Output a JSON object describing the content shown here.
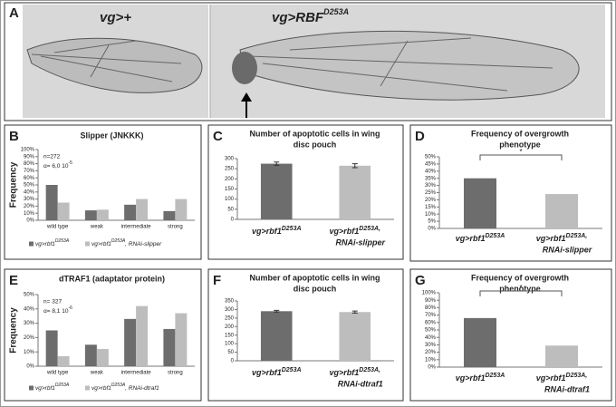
{
  "panel_a": {
    "letter": "A",
    "left_label": "vg>+",
    "right_label": "vg>RBF",
    "right_label_sup": "D253A"
  },
  "chart_data": [
    {
      "type": "bar",
      "panel": "B",
      "title": [
        "Slipper (JNKKK)"
      ],
      "ylabel": "Frequency",
      "annotations": [
        "n=272",
        "α= 6,0 10",
        "-5"
      ],
      "categories": [
        "wild type",
        "weak",
        "intermediate",
        "strong"
      ],
      "series": [
        {
          "name": "vg>rbf1",
          "sup": "D253A",
          "color": "#6d6d6d",
          "values": [
            50,
            14,
            22,
            13
          ]
        },
        {
          "name": "vg>rbf1",
          "sup": "D253A",
          "suffix": ", RNAi-slipper",
          "color": "#bdbdbd",
          "values": [
            25,
            15,
            30,
            30
          ]
        }
      ],
      "ylim": [
        0,
        100
      ],
      "yticks": [
        {
          "value": 0,
          "label": "0%"
        },
        {
          "value": 10,
          "label": "10%"
        },
        {
          "value": 20,
          "label": "20%"
        },
        {
          "value": 30,
          "label": "30%"
        },
        {
          "value": 40,
          "label": "40%"
        },
        {
          "value": 50,
          "label": "50%"
        },
        {
          "value": 60,
          "label": "60%"
        },
        {
          "value": 70,
          "label": "70%"
        },
        {
          "value": 80,
          "label": "80%"
        },
        {
          "value": 90,
          "label": "90%"
        },
        {
          "value": 100,
          "label": "100%"
        }
      ]
    },
    {
      "type": "bar",
      "panel": "C",
      "title": [
        "Number of apoptotic cells in wing",
        "disc pouch"
      ],
      "categories": [
        "vg>rbf1",
        "vg>rbf1"
      ],
      "category_sup": [
        "D253A",
        "D253A,"
      ],
      "category_line2": [
        null,
        "RNAi-slipper"
      ],
      "values": [
        275,
        265
      ],
      "errors": [
        8,
        10
      ],
      "colors": [
        "#6d6d6d",
        "#bdbdbd"
      ],
      "ylim": [
        0,
        300
      ],
      "yticks": [
        0,
        50,
        100,
        150,
        200,
        250,
        300
      ]
    },
    {
      "type": "bar",
      "panel": "D",
      "title": [
        "Frequency of overgrowth",
        "phenotype"
      ],
      "significance": "*",
      "categories": [
        "vg>rbf1",
        "vg>rbf1"
      ],
      "category_sup": [
        "D253A",
        "D253A,"
      ],
      "category_line2": [
        null,
        "RNAi-slipper"
      ],
      "values": [
        35,
        24
      ],
      "colors": [
        "#6d6d6d",
        "#bdbdbd"
      ],
      "ylim": [
        0,
        50
      ],
      "yticks": [
        {
          "value": 0,
          "label": "0%"
        },
        {
          "value": 5,
          "label": "5%"
        },
        {
          "value": 10,
          "label": "10%"
        },
        {
          "value": 15,
          "label": "15%"
        },
        {
          "value": 20,
          "label": "20%"
        },
        {
          "value": 25,
          "label": "25%"
        },
        {
          "value": 30,
          "label": "30%"
        },
        {
          "value": 35,
          "label": "35%"
        },
        {
          "value": 40,
          "label": "40%"
        },
        {
          "value": 45,
          "label": "45%"
        },
        {
          "value": 50,
          "label": "50%"
        }
      ]
    },
    {
      "type": "bar",
      "panel": "E",
      "title": [
        "dTRAF1 (adaptator protein)"
      ],
      "ylabel": "Frequency",
      "annotations": [
        "n= 327",
        "α= 8,1 10",
        "-6"
      ],
      "categories": [
        "wild type",
        "weak",
        "intermediate",
        "strong"
      ],
      "series": [
        {
          "name": "vg>rbf1",
          "sup": "D253A",
          "color": "#6d6d6d",
          "values": [
            25,
            15,
            33,
            26
          ]
        },
        {
          "name": "vg>rbf1",
          "sup": "D253A",
          "suffix": ", RNAi-dtraf1",
          "color": "#bdbdbd",
          "values": [
            7,
            12,
            42,
            37
          ]
        }
      ],
      "ylim": [
        0,
        50
      ],
      "yticks": [
        {
          "value": 0,
          "label": "0%"
        },
        {
          "value": 10,
          "label": "10%"
        },
        {
          "value": 20,
          "label": "20%"
        },
        {
          "value": 30,
          "label": "30%"
        },
        {
          "value": 40,
          "label": "40%"
        },
        {
          "value": 50,
          "label": "50%"
        }
      ]
    },
    {
      "type": "bar",
      "panel": "F",
      "title": [
        "Number of apoptotic cells in wing",
        "disc pouch"
      ],
      "categories": [
        "vg>rbf1",
        "vg>rbf1"
      ],
      "category_sup": [
        "D253A",
        "D253A,"
      ],
      "category_line2": [
        null,
        "RNAi-dtraf1"
      ],
      "values": [
        290,
        285
      ],
      "errors": [
        5,
        6
      ],
      "colors": [
        "#6d6d6d",
        "#bdbdbd"
      ],
      "ylim": [
        0,
        350
      ],
      "yticks": [
        0,
        50,
        100,
        150,
        200,
        250,
        300,
        350
      ]
    },
    {
      "type": "bar",
      "panel": "G",
      "title": [
        "Frequency of overgrowth",
        "phenotype"
      ],
      "significance": "*",
      "categories": [
        "vg>rbf1",
        "vg>rbf1"
      ],
      "category_sup": [
        "D253A",
        "D253A,"
      ],
      "category_line2": [
        null,
        "RNAi-dtraf1"
      ],
      "values": [
        66,
        29
      ],
      "colors": [
        "#6d6d6d",
        "#bdbdbd"
      ],
      "ylim": [
        0,
        100
      ],
      "yticks": [
        {
          "value": 0,
          "label": "0%"
        },
        {
          "value": 10,
          "label": "10%"
        },
        {
          "value": 20,
          "label": "20%"
        },
        {
          "value": 30,
          "label": "30%"
        },
        {
          "value": 40,
          "label": "40%"
        },
        {
          "value": 50,
          "label": "50%"
        },
        {
          "value": 60,
          "label": "60%"
        },
        {
          "value": 70,
          "label": "70%"
        },
        {
          "value": 80,
          "label": "80%"
        },
        {
          "value": 90,
          "label": "90%"
        },
        {
          "value": 100,
          "label": "100%"
        }
      ]
    }
  ]
}
